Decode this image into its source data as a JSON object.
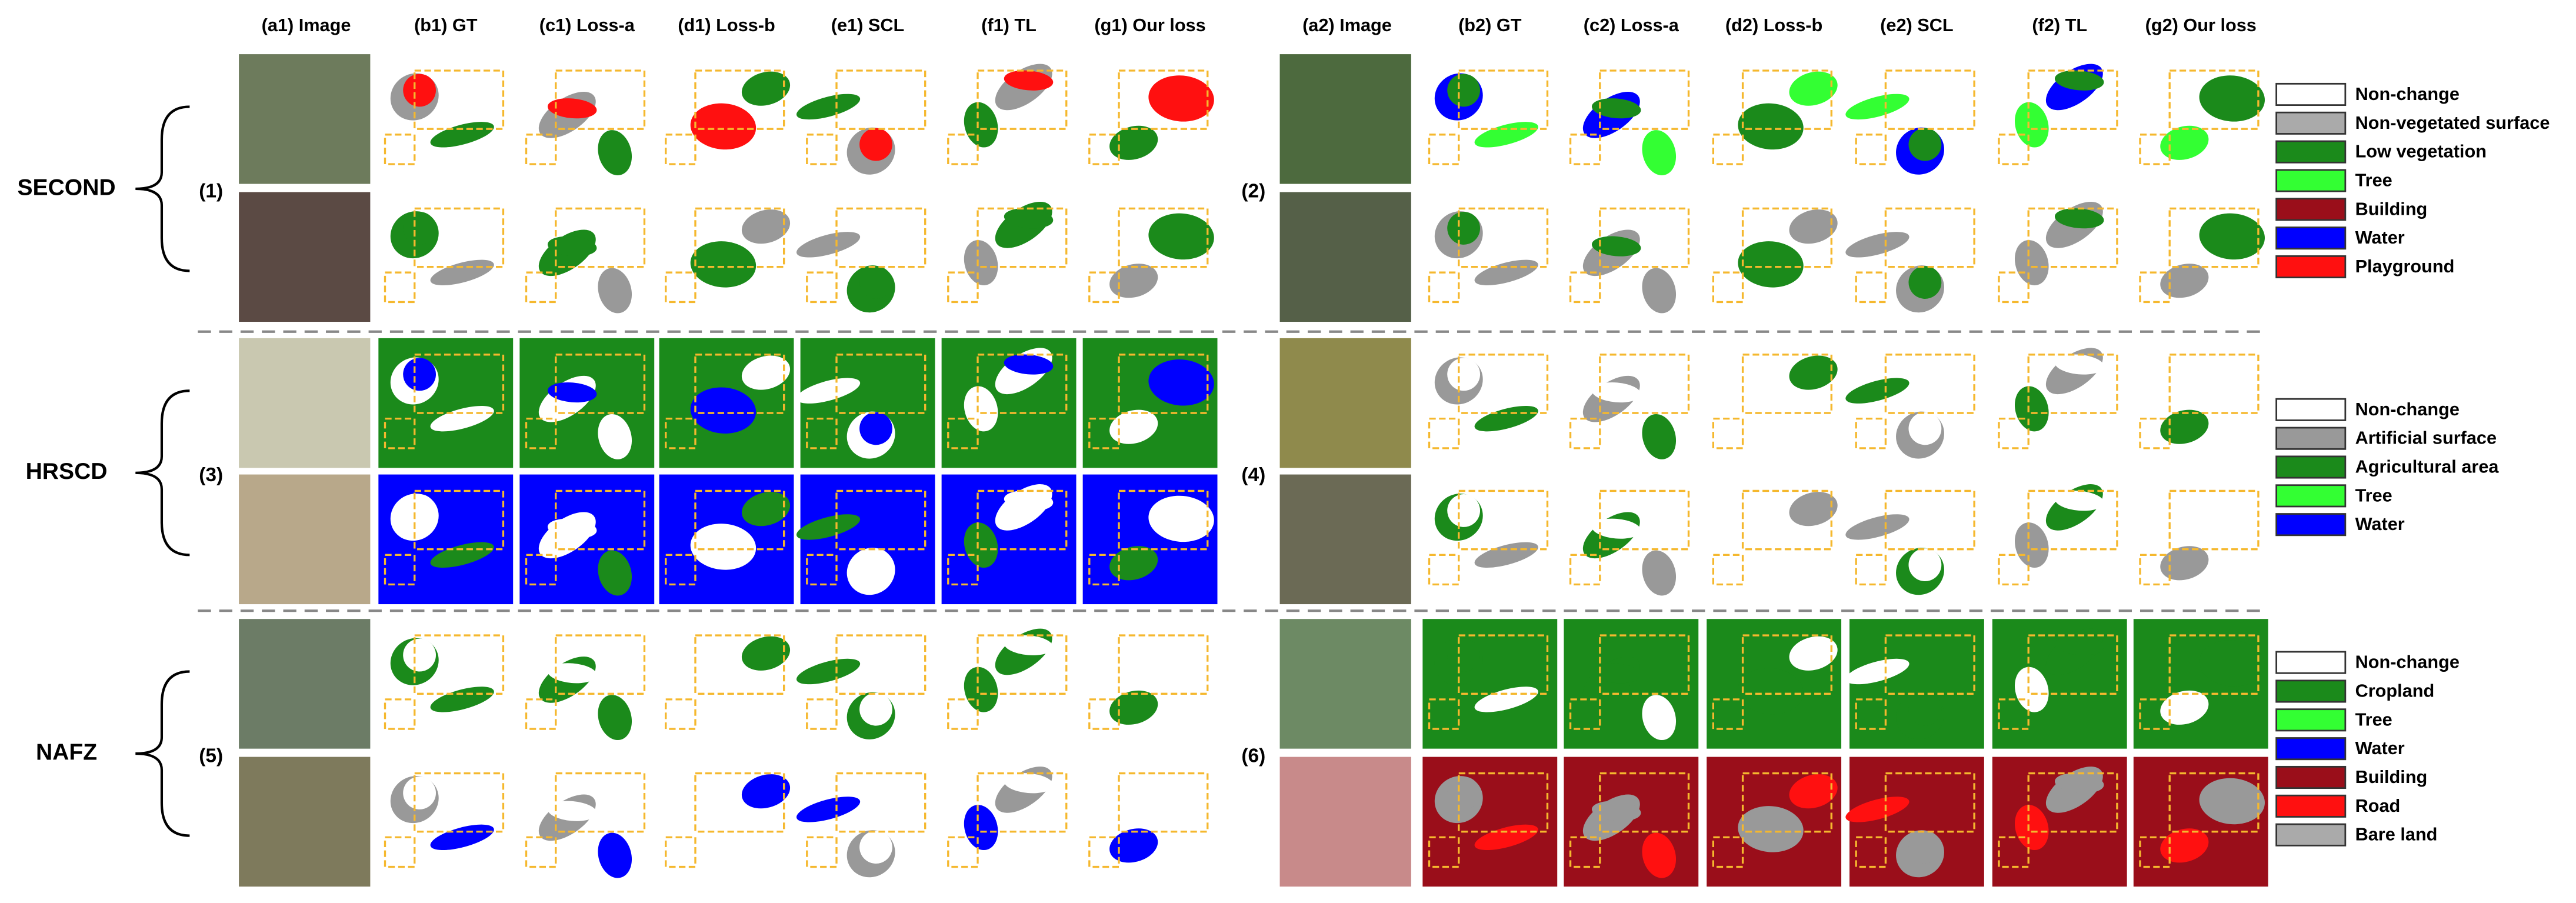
{
  "columns_left": [
    "(a1) Image",
    "(b1) GT",
    "(c1) Loss-a",
    "(d1) Loss-b",
    "(e1) SCL",
    "(f1) TL",
    "(g1) Our loss"
  ],
  "columns_right": [
    "(a2) Image",
    "(b2) GT",
    "(c2) Loss-a",
    "(d2) Loss-b",
    "(e2) SCL",
    "(f2) TL",
    "(g2) Our loss"
  ],
  "groups": [
    {
      "name": "SECOND",
      "rows": [
        "(1)",
        "(2)"
      ],
      "legend": [
        "Non-change",
        "Non-vegetated surface",
        "Low vegetation",
        "Tree",
        "Building",
        "Water",
        "Playground"
      ]
    },
    {
      "name": "HRSCD",
      "rows": [
        "(3)",
        "(4)"
      ],
      "legend": [
        "Non-change",
        "Artificial surface",
        "Agricultural area",
        "Tree",
        "Water"
      ]
    },
    {
      "name": "NAFZ",
      "rows": [
        "(5)",
        "(6)"
      ],
      "legend": [
        "Non-change",
        "Cropland",
        "Tree",
        "Water",
        "Building",
        "Road",
        "Bare land"
      ]
    }
  ]
}
